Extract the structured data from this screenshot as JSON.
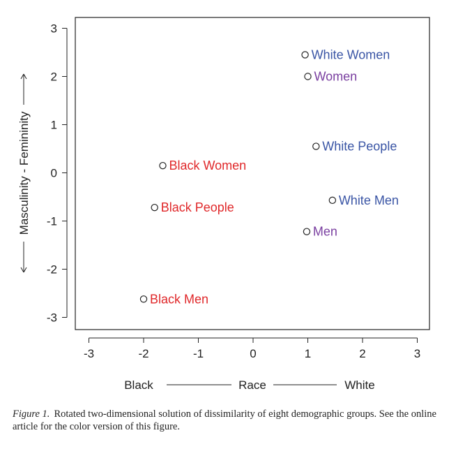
{
  "chart_data": {
    "type": "scatter",
    "xlim": [
      -3.2,
      3.2
    ],
    "ylim": [
      -3.2,
      3.2
    ],
    "x_ticks": [
      -3,
      -2,
      -1,
      0,
      1,
      2,
      3
    ],
    "y_ticks": [
      -3,
      -2,
      -1,
      0,
      1,
      2,
      3
    ],
    "x_axis_labels": {
      "left": "Black",
      "center": "Race",
      "right": "White"
    },
    "y_axis_label": "Masculinity - Femininity",
    "points": [
      {
        "label": "White Women",
        "x": 0.95,
        "y": 2.45,
        "color": "#3a55a5"
      },
      {
        "label": "Women",
        "x": 1.0,
        "y": 2.0,
        "color": "#7a3fa0"
      },
      {
        "label": "White People",
        "x": 1.15,
        "y": 0.55,
        "color": "#3a55a5"
      },
      {
        "label": "White Men",
        "x": 1.45,
        "y": -0.57,
        "color": "#3a55a5"
      },
      {
        "label": "Men",
        "x": 0.98,
        "y": -1.22,
        "color": "#7a3fa0"
      },
      {
        "label": "Black Women",
        "x": -1.65,
        "y": 0.15,
        "color": "#e0282a"
      },
      {
        "label": "Black People",
        "x": -1.8,
        "y": -0.72,
        "color": "#e0282a"
      },
      {
        "label": "Black Men",
        "x": -2.0,
        "y": -2.62,
        "color": "#e0282a"
      }
    ],
    "grid": false,
    "legend": "none"
  },
  "caption": {
    "figure_label": "Figure 1.",
    "text": "Rotated two-dimensional solution of dissimilarity of eight demographic groups. See the online article for the color version of this figure."
  }
}
